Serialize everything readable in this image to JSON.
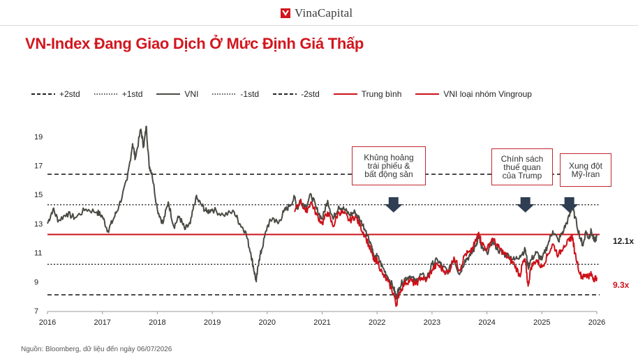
{
  "header": {
    "logo_text": "VinaCapital"
  },
  "title": "VN-Index Đang Giao Dịch Ở Mức Định Giá Thấp",
  "source": "Nguồn: Bloomberg, dữ liệu đến ngày 06/07/2026",
  "colors": {
    "accent": "#d2161e",
    "vni": "#4a4a44",
    "vingroup": "#cc1119",
    "reference": "#222222",
    "annotation_border": "#c0272d",
    "arrow": "#2f3e52"
  },
  "legend": [
    {
      "label": "+2std",
      "style": "dashed"
    },
    {
      "label": "+1std",
      "style": "dotted"
    },
    {
      "label": "VNI",
      "style": "solid-grey"
    },
    {
      "label": "-1std",
      "style": "dotted"
    },
    {
      "label": "-2std",
      "style": "dashed"
    },
    {
      "label": "Trung bình",
      "style": "solid-red"
    },
    {
      "label": "VNI loại nhóm Vingroup",
      "style": "solid-red"
    }
  ],
  "annotations": [
    {
      "lines": [
        "Khủng hoảng",
        "trái phiếu &",
        "bất động sản"
      ]
    },
    {
      "lines": [
        "Chính sách",
        "thuế quan",
        "của Trump"
      ]
    },
    {
      "lines": [
        "Xung đột",
        "Mỹ-Iran"
      ]
    }
  ],
  "end_labels": {
    "vni": "12.1x",
    "vingroup": "9.3x"
  },
  "chart_data": {
    "type": "line",
    "xlim": [
      2016,
      2026
    ],
    "ylim": [
      7,
      20
    ],
    "x_ticks": [
      "2016",
      "2017",
      "2018",
      "2019",
      "2020",
      "2021",
      "2022",
      "2023",
      "2024",
      "2025",
      "2026"
    ],
    "y_ticks": [
      "7",
      "9",
      "11",
      "13",
      "15",
      "17",
      "19"
    ],
    "reference_lines": [
      {
        "name": "+2std",
        "value": 16.4,
        "style": "dashed"
      },
      {
        "name": "+1std",
        "value": 14.3,
        "style": "dotted"
      },
      {
        "name": "Trung bình",
        "value": 12.25,
        "style": "solid-red"
      },
      {
        "name": "-1std",
        "value": 10.2,
        "style": "dotted"
      },
      {
        "name": "-2std",
        "value": 8.1,
        "style": "dashed"
      }
    ],
    "annotation_x": [
      2022.3,
      2024.7,
      2025.5
    ],
    "series": [
      {
        "name": "VNI",
        "points": [
          [
            2016.0,
            13.0
          ],
          [
            2016.1,
            14.0
          ],
          [
            2016.2,
            13.2
          ],
          [
            2016.35,
            13.7
          ],
          [
            2016.5,
            13.4
          ],
          [
            2016.7,
            14.0
          ],
          [
            2016.9,
            13.8
          ],
          [
            2017.0,
            13.5
          ],
          [
            2017.1,
            12.5
          ],
          [
            2017.2,
            13.3
          ],
          [
            2017.3,
            14.2
          ],
          [
            2017.45,
            16.0
          ],
          [
            2017.55,
            18.5
          ],
          [
            2017.6,
            17.5
          ],
          [
            2017.7,
            19.5
          ],
          [
            2017.75,
            18.3
          ],
          [
            2017.8,
            19.7
          ],
          [
            2017.85,
            17.0
          ],
          [
            2017.9,
            16.5
          ],
          [
            2018.0,
            14.0
          ],
          [
            2018.1,
            13.0
          ],
          [
            2018.2,
            14.5
          ],
          [
            2018.3,
            12.8
          ],
          [
            2018.4,
            13.5
          ],
          [
            2018.5,
            12.6
          ],
          [
            2018.6,
            13.0
          ],
          [
            2018.7,
            14.8
          ],
          [
            2018.8,
            14.3
          ],
          [
            2018.9,
            13.8
          ],
          [
            2019.0,
            14.0
          ],
          [
            2019.2,
            13.6
          ],
          [
            2019.4,
            13.8
          ],
          [
            2019.5,
            13.0
          ],
          [
            2019.6,
            12.5
          ],
          [
            2019.7,
            11.0
          ],
          [
            2019.75,
            10.0
          ],
          [
            2019.8,
            9.0
          ],
          [
            2019.85,
            10.5
          ],
          [
            2019.9,
            11.2
          ],
          [
            2020.0,
            12.8
          ],
          [
            2020.1,
            13.4
          ],
          [
            2020.2,
            13.0
          ],
          [
            2020.3,
            13.8
          ],
          [
            2020.4,
            14.2
          ],
          [
            2020.5,
            14.8
          ],
          [
            2020.55,
            14.0
          ],
          [
            2020.6,
            14.6
          ],
          [
            2020.7,
            14.2
          ],
          [
            2020.8,
            15.0
          ],
          [
            2020.9,
            14.0
          ],
          [
            2021.0,
            13.3
          ],
          [
            2021.1,
            14.6
          ],
          [
            2021.2,
            13.3
          ],
          [
            2021.3,
            14.2
          ],
          [
            2021.4,
            14.0
          ],
          [
            2021.5,
            13.6
          ],
          [
            2021.6,
            13.8
          ],
          [
            2021.7,
            13.2
          ],
          [
            2021.8,
            12.5
          ],
          [
            2021.9,
            11.5
          ],
          [
            2021.95,
            10.5
          ],
          [
            2022.0,
            10.8
          ],
          [
            2022.1,
            10.0
          ],
          [
            2022.2,
            9.3
          ],
          [
            2022.3,
            8.6
          ],
          [
            2022.35,
            7.9
          ],
          [
            2022.4,
            8.6
          ],
          [
            2022.5,
            9.2
          ],
          [
            2022.6,
            9.4
          ],
          [
            2022.7,
            9.0
          ],
          [
            2022.8,
            9.5
          ],
          [
            2022.9,
            9.2
          ],
          [
            2023.0,
            10.2
          ],
          [
            2023.1,
            10.5
          ],
          [
            2023.2,
            10.0
          ],
          [
            2023.3,
            9.7
          ],
          [
            2023.4,
            10.6
          ],
          [
            2023.5,
            9.5
          ],
          [
            2023.6,
            10.5
          ],
          [
            2023.7,
            10.8
          ],
          [
            2023.8,
            11.5
          ],
          [
            2023.85,
            12.2
          ],
          [
            2023.9,
            11.3
          ],
          [
            2024.0,
            11.0
          ],
          [
            2024.1,
            11.8
          ],
          [
            2024.2,
            11.2
          ],
          [
            2024.3,
            10.9
          ],
          [
            2024.4,
            10.8
          ],
          [
            2024.5,
            10.5
          ],
          [
            2024.6,
            10.8
          ],
          [
            2024.7,
            11.2
          ],
          [
            2024.75,
            10.0
          ],
          [
            2024.8,
            10.5
          ],
          [
            2024.9,
            11.0
          ],
          [
            2025.0,
            10.5
          ],
          [
            2025.1,
            11.5
          ],
          [
            2025.2,
            12.5
          ],
          [
            2025.3,
            11.8
          ],
          [
            2025.4,
            12.6
          ],
          [
            2025.5,
            13.5
          ],
          [
            2025.55,
            14.2
          ],
          [
            2025.6,
            13.5
          ],
          [
            2025.7,
            12.0
          ],
          [
            2025.75,
            11.5
          ],
          [
            2025.8,
            12.5
          ],
          [
            2025.85,
            12.0
          ],
          [
            2025.9,
            12.5
          ],
          [
            2025.95,
            11.8
          ],
          [
            2026.0,
            12.1
          ]
        ]
      },
      {
        "name": "VNI loại nhóm Vingroup",
        "points": [
          [
            2020.5,
            13.8
          ],
          [
            2020.6,
            14.6
          ],
          [
            2020.7,
            13.8
          ],
          [
            2020.8,
            14.5
          ],
          [
            2020.9,
            13.6
          ],
          [
            2021.0,
            13.0
          ],
          [
            2021.1,
            13.8
          ],
          [
            2021.2,
            12.8
          ],
          [
            2021.3,
            13.8
          ],
          [
            2021.4,
            13.7
          ],
          [
            2021.5,
            13.2
          ],
          [
            2021.6,
            13.5
          ],
          [
            2021.7,
            12.8
          ],
          [
            2021.8,
            12.0
          ],
          [
            2021.9,
            11.0
          ],
          [
            2021.95,
            10.4
          ],
          [
            2022.0,
            10.5
          ],
          [
            2022.1,
            9.5
          ],
          [
            2022.2,
            9.0
          ],
          [
            2022.3,
            8.2
          ],
          [
            2022.35,
            7.4
          ],
          [
            2022.4,
            8.2
          ],
          [
            2022.5,
            8.9
          ],
          [
            2022.6,
            9.1
          ],
          [
            2022.7,
            8.8
          ],
          [
            2022.8,
            9.3
          ],
          [
            2022.9,
            9.1
          ],
          [
            2023.0,
            9.8
          ],
          [
            2023.1,
            10.2
          ],
          [
            2023.2,
            9.8
          ],
          [
            2023.3,
            9.6
          ],
          [
            2023.4,
            10.7
          ],
          [
            2023.5,
            9.8
          ],
          [
            2023.6,
            10.9
          ],
          [
            2023.7,
            11.0
          ],
          [
            2023.8,
            11.8
          ],
          [
            2023.85,
            12.4
          ],
          [
            2023.9,
            11.7
          ],
          [
            2024.0,
            11.2
          ],
          [
            2024.1,
            12.0
          ],
          [
            2024.2,
            11.4
          ],
          [
            2024.3,
            11.0
          ],
          [
            2024.4,
            10.6
          ],
          [
            2024.5,
            10.2
          ],
          [
            2024.6,
            9.4
          ],
          [
            2024.65,
            10.3
          ],
          [
            2024.7,
            10.4
          ],
          [
            2024.75,
            8.7
          ],
          [
            2024.8,
            10.0
          ],
          [
            2024.9,
            10.5
          ],
          [
            2025.0,
            10.0
          ],
          [
            2025.1,
            10.8
          ],
          [
            2025.2,
            11.6
          ],
          [
            2025.3,
            10.8
          ],
          [
            2025.4,
            11.5
          ],
          [
            2025.5,
            11.8
          ],
          [
            2025.55,
            12.2
          ],
          [
            2025.6,
            11.0
          ],
          [
            2025.7,
            9.5
          ],
          [
            2025.75,
            9.3
          ],
          [
            2025.8,
            9.5
          ],
          [
            2025.85,
            9.4
          ],
          [
            2025.9,
            9.5
          ],
          [
            2025.95,
            9.2
          ],
          [
            2026.0,
            9.3
          ]
        ]
      }
    ]
  }
}
